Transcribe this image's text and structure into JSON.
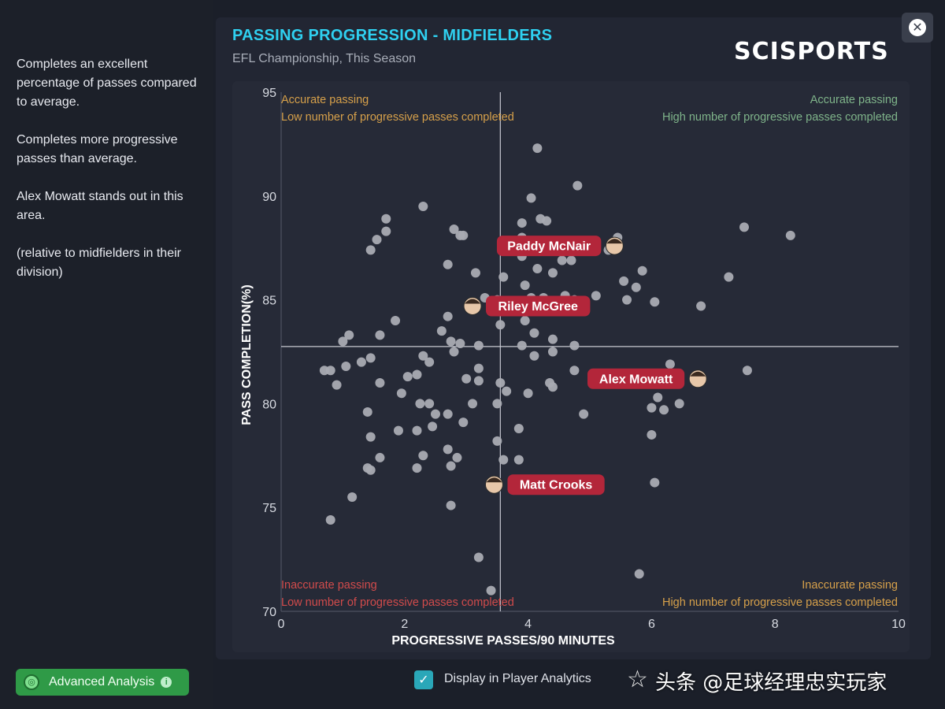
{
  "sidebar": {
    "paragraphs": [
      "Completes an excellent percentage of passes compared to average.",
      "Completes more progressive passes than average.",
      "Alex Mowatt stands out in this area.",
      "(relative to midfielders in their division)"
    ],
    "advanced_analysis_label": "Advanced Analysis",
    "info_glyph": "i"
  },
  "header": {
    "title": "PASSING PROGRESSION - MIDFIELDERS",
    "subtitle": "EFL Championship, This Season",
    "logo_text": "SCISPORTS",
    "close_glyph": "✕"
  },
  "footer": {
    "display_checkbox_label": "Display in Player Analytics",
    "checked": true,
    "check_glyph": "✓",
    "star_glyph": "☆",
    "watermark": "头条 @足球经理忠实玩家"
  },
  "colors": {
    "title": "#2fd0f0",
    "point": "#a9abb2",
    "label_bg": "#b3263a",
    "quad_good": "#7fb48a",
    "quad_mixed": "#d6a04a",
    "quad_bad": "#d14b4b"
  },
  "chart_data": {
    "type": "scatter",
    "xlabel": "PROGRESSIVE PASSES/90 MINUTES",
    "ylabel": "PASS COMPLETION(%)",
    "xlim": [
      0,
      10
    ],
    "ylim": [
      70,
      95
    ],
    "xticks": [
      0,
      2,
      4,
      6,
      8,
      10
    ],
    "yticks": [
      70,
      75,
      80,
      85,
      90,
      95
    ],
    "average_x": 3.55,
    "average_y": 82.75,
    "quadrants": {
      "top_left": [
        "Accurate passing",
        "Low number of progressive passes completed"
      ],
      "top_right": [
        "Accurate passing",
        "High number of progressive passes completed"
      ],
      "bottom_left": [
        "Inaccurate passing",
        "Low number of progressive passes completed"
      ],
      "bottom_right": [
        "Inaccurate passing",
        "High number of progressive passes completed"
      ]
    },
    "highlighted": [
      {
        "name": "Paddy McNair",
        "x": 5.4,
        "y": 87.6
      },
      {
        "name": "Riley McGree",
        "x": 3.1,
        "y": 84.7
      },
      {
        "name": "Alex Mowatt",
        "x": 6.75,
        "y": 81.2
      },
      {
        "name": "Matt Crooks",
        "x": 3.45,
        "y": 76.1
      }
    ],
    "points": [
      [
        4.15,
        92.3
      ],
      [
        4.8,
        90.5
      ],
      [
        4.05,
        89.9
      ],
      [
        2.3,
        89.5
      ],
      [
        1.7,
        88.9
      ],
      [
        4.2,
        88.9
      ],
      [
        4.3,
        88.8
      ],
      [
        3.9,
        88.7
      ],
      [
        1.7,
        88.3
      ],
      [
        2.8,
        88.4
      ],
      [
        2.9,
        88.1
      ],
      [
        2.95,
        88.1
      ],
      [
        1.55,
        87.9
      ],
      [
        1.45,
        87.4
      ],
      [
        3.9,
        88.0
      ],
      [
        4.35,
        87.8
      ],
      [
        5.45,
        88.0
      ],
      [
        7.5,
        88.5
      ],
      [
        8.25,
        88.1
      ],
      [
        5.3,
        87.4
      ],
      [
        3.9,
        87.1
      ],
      [
        4.55,
        86.9
      ],
      [
        4.7,
        86.9
      ],
      [
        2.7,
        86.7
      ],
      [
        4.15,
        86.5
      ],
      [
        3.15,
        86.3
      ],
      [
        3.6,
        86.1
      ],
      [
        4.4,
        86.3
      ],
      [
        5.85,
        86.4
      ],
      [
        5.55,
        85.9
      ],
      [
        7.25,
        86.1
      ],
      [
        3.95,
        85.7
      ],
      [
        5.75,
        85.6
      ],
      [
        3.3,
        85.1
      ],
      [
        3.5,
        85.0
      ],
      [
        4.05,
        85.1
      ],
      [
        4.25,
        85.1
      ],
      [
        4.6,
        85.2
      ],
      [
        4.75,
        85.0
      ],
      [
        5.1,
        85.2
      ],
      [
        5.6,
        85.0
      ],
      [
        6.05,
        84.9
      ],
      [
        6.8,
        84.7
      ],
      [
        3.8,
        84.5
      ],
      [
        2.7,
        84.2
      ],
      [
        3.95,
        84.0
      ],
      [
        1.85,
        84.0
      ],
      [
        2.6,
        83.5
      ],
      [
        3.55,
        83.8
      ],
      [
        4.1,
        83.4
      ],
      [
        1.1,
        83.3
      ],
      [
        1.6,
        83.3
      ],
      [
        1.0,
        83.0
      ],
      [
        2.75,
        83.0
      ],
      [
        2.9,
        82.9
      ],
      [
        3.2,
        82.8
      ],
      [
        3.9,
        82.8
      ],
      [
        4.4,
        83.1
      ],
      [
        4.75,
        82.8
      ],
      [
        2.3,
        82.3
      ],
      [
        2.8,
        82.5
      ],
      [
        4.1,
        82.3
      ],
      [
        4.4,
        82.5
      ],
      [
        1.45,
        82.2
      ],
      [
        2.4,
        82.0
      ],
      [
        1.3,
        82.0
      ],
      [
        1.05,
        81.8
      ],
      [
        0.7,
        81.6
      ],
      [
        0.8,
        81.6
      ],
      [
        3.2,
        81.7
      ],
      [
        4.75,
        81.6
      ],
      [
        6.3,
        81.9
      ],
      [
        7.55,
        81.6
      ],
      [
        2.05,
        81.3
      ],
      [
        2.2,
        81.4
      ],
      [
        3.0,
        81.2
      ],
      [
        3.2,
        81.1
      ],
      [
        4.35,
        81.0
      ],
      [
        0.9,
        80.9
      ],
      [
        1.6,
        81.0
      ],
      [
        3.55,
        81.0
      ],
      [
        4.4,
        80.8
      ],
      [
        1.95,
        80.5
      ],
      [
        3.65,
        80.6
      ],
      [
        4.0,
        80.5
      ],
      [
        2.25,
        80.0
      ],
      [
        2.4,
        80.0
      ],
      [
        3.1,
        80.0
      ],
      [
        3.5,
        80.0
      ],
      [
        6.1,
        80.3
      ],
      [
        6.45,
        80.0
      ],
      [
        6.0,
        79.8
      ],
      [
        6.2,
        79.7
      ],
      [
        1.4,
        79.6
      ],
      [
        2.5,
        79.5
      ],
      [
        2.7,
        79.5
      ],
      [
        4.9,
        79.5
      ],
      [
        2.95,
        79.1
      ],
      [
        2.45,
        78.9
      ],
      [
        1.9,
        78.7
      ],
      [
        2.2,
        78.7
      ],
      [
        3.85,
        78.8
      ],
      [
        6.0,
        78.5
      ],
      [
        1.45,
        78.4
      ],
      [
        3.5,
        78.2
      ],
      [
        2.7,
        77.8
      ],
      [
        1.6,
        77.4
      ],
      [
        2.3,
        77.5
      ],
      [
        2.85,
        77.4
      ],
      [
        3.6,
        77.3
      ],
      [
        3.85,
        77.3
      ],
      [
        1.4,
        76.9
      ],
      [
        1.45,
        76.8
      ],
      [
        2.2,
        76.9
      ],
      [
        2.75,
        77.0
      ],
      [
        6.05,
        76.2
      ],
      [
        1.15,
        75.5
      ],
      [
        2.75,
        75.1
      ],
      [
        0.8,
        74.4
      ],
      [
        3.2,
        72.6
      ],
      [
        5.8,
        71.8
      ],
      [
        3.4,
        71.0
      ]
    ]
  }
}
